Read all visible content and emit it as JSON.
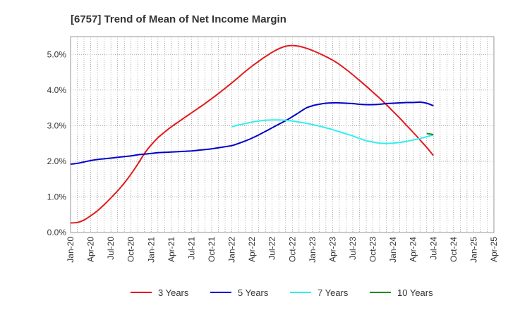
{
  "chart_data": {
    "type": "line",
    "title": "[6757]  Trend of Mean of Net Income Margin",
    "xlabel": "",
    "ylabel": "",
    "ylim": [
      0,
      5.5
    ],
    "y_ticks": [
      "0.0%",
      "1.0%",
      "2.0%",
      "3.0%",
      "4.0%",
      "5.0%"
    ],
    "x_ticks": [
      "Jan-20",
      "Apr-20",
      "Jul-20",
      "Oct-20",
      "Jan-21",
      "Apr-21",
      "Jul-21",
      "Oct-21",
      "Jan-22",
      "Apr-22",
      "Jul-22",
      "Oct-22",
      "Jan-23",
      "Apr-23",
      "Jul-23",
      "Oct-23",
      "Jan-24",
      "Apr-24",
      "Jul-24",
      "Oct-24",
      "Jan-25",
      "Apr-25"
    ],
    "grid": true,
    "legend_position": "bottom",
    "series": [
      {
        "name": "3 Years",
        "color": "#e31a1c",
        "points": [
          [
            "Jan-20",
            0.27
          ],
          [
            "Feb-20",
            0.28
          ],
          [
            "Mar-20",
            0.35
          ],
          [
            "Apr-20",
            0.47
          ],
          [
            "May-20",
            0.61
          ],
          [
            "Jun-20",
            0.78
          ],
          [
            "Jul-20",
            0.97
          ],
          [
            "Aug-20",
            1.17
          ],
          [
            "Sep-20",
            1.39
          ],
          [
            "Oct-20",
            1.64
          ],
          [
            "Nov-20",
            1.92
          ],
          [
            "Dec-20",
            2.22
          ],
          [
            "Jan-21",
            2.46
          ],
          [
            "Feb-21",
            2.66
          ],
          [
            "Mar-21",
            2.82
          ],
          [
            "Apr-21",
            2.97
          ],
          [
            "May-21",
            3.1
          ],
          [
            "Jun-21",
            3.23
          ],
          [
            "Jul-21",
            3.36
          ],
          [
            "Aug-21",
            3.49
          ],
          [
            "Sep-21",
            3.62
          ],
          [
            "Oct-21",
            3.76
          ],
          [
            "Nov-21",
            3.9
          ],
          [
            "Dec-21",
            4.05
          ],
          [
            "Jan-22",
            4.2
          ],
          [
            "Feb-22",
            4.36
          ],
          [
            "Mar-22",
            4.52
          ],
          [
            "Apr-22",
            4.67
          ],
          [
            "May-22",
            4.81
          ],
          [
            "Jun-22",
            4.94
          ],
          [
            "Jul-22",
            5.06
          ],
          [
            "Aug-22",
            5.16
          ],
          [
            "Sep-22",
            5.23
          ],
          [
            "Oct-22",
            5.25
          ],
          [
            "Nov-22",
            5.23
          ],
          [
            "Dec-22",
            5.18
          ],
          [
            "Jan-23",
            5.11
          ],
          [
            "Feb-23",
            5.03
          ],
          [
            "Mar-23",
            4.94
          ],
          [
            "Apr-23",
            4.84
          ],
          [
            "May-23",
            4.72
          ],
          [
            "Jun-23",
            4.58
          ],
          [
            "Jul-23",
            4.43
          ],
          [
            "Aug-23",
            4.27
          ],
          [
            "Sep-23",
            4.11
          ],
          [
            "Oct-23",
            3.94
          ],
          [
            "Nov-23",
            3.77
          ],
          [
            "Dec-23",
            3.59
          ],
          [
            "Jan-24",
            3.4
          ],
          [
            "Feb-24",
            3.21
          ],
          [
            "Mar-24",
            3.01
          ],
          [
            "Apr-24",
            2.81
          ],
          [
            "May-24",
            2.6
          ],
          [
            "Jun-24",
            2.39
          ],
          [
            "Jul-24",
            2.16
          ]
        ]
      },
      {
        "name": "5 Years",
        "color": "#0000cc",
        "points": [
          [
            "Jan-20",
            1.92
          ],
          [
            "Feb-20",
            1.94
          ],
          [
            "Mar-20",
            1.98
          ],
          [
            "Apr-20",
            2.02
          ],
          [
            "May-20",
            2.05
          ],
          [
            "Jun-20",
            2.07
          ],
          [
            "Jul-20",
            2.09
          ],
          [
            "Aug-20",
            2.11
          ],
          [
            "Sep-20",
            2.13
          ],
          [
            "Oct-20",
            2.15
          ],
          [
            "Nov-20",
            2.18
          ],
          [
            "Dec-20",
            2.2
          ],
          [
            "Jan-21",
            2.22
          ],
          [
            "Feb-21",
            2.24
          ],
          [
            "Mar-21",
            2.25
          ],
          [
            "Apr-21",
            2.26
          ],
          [
            "May-21",
            2.27
          ],
          [
            "Jun-21",
            2.28
          ],
          [
            "Jul-21",
            2.29
          ],
          [
            "Aug-21",
            2.31
          ],
          [
            "Sep-21",
            2.33
          ],
          [
            "Oct-21",
            2.35
          ],
          [
            "Nov-21",
            2.38
          ],
          [
            "Dec-21",
            2.41
          ],
          [
            "Jan-22",
            2.44
          ],
          [
            "Feb-22",
            2.5
          ],
          [
            "Mar-22",
            2.57
          ],
          [
            "Apr-22",
            2.65
          ],
          [
            "May-22",
            2.74
          ],
          [
            "Jun-22",
            2.84
          ],
          [
            "Jul-22",
            2.94
          ],
          [
            "Aug-22",
            3.04
          ],
          [
            "Sep-22",
            3.14
          ],
          [
            "Oct-22",
            3.25
          ],
          [
            "Nov-22",
            3.37
          ],
          [
            "Dec-22",
            3.49
          ],
          [
            "Jan-23",
            3.56
          ],
          [
            "Feb-23",
            3.6
          ],
          [
            "Mar-23",
            3.63
          ],
          [
            "Apr-23",
            3.64
          ],
          [
            "May-23",
            3.64
          ],
          [
            "Jun-23",
            3.63
          ],
          [
            "Jul-23",
            3.62
          ],
          [
            "Aug-23",
            3.6
          ],
          [
            "Sep-23",
            3.59
          ],
          [
            "Oct-23",
            3.59
          ],
          [
            "Nov-23",
            3.6
          ],
          [
            "Dec-23",
            3.62
          ],
          [
            "Jan-24",
            3.63
          ],
          [
            "Feb-24",
            3.64
          ],
          [
            "Mar-24",
            3.65
          ],
          [
            "Apr-24",
            3.65
          ],
          [
            "May-24",
            3.66
          ],
          [
            "Jun-24",
            3.63
          ],
          [
            "Jul-24",
            3.56
          ]
        ]
      },
      {
        "name": "7 Years",
        "color": "#33eeee",
        "points": [
          [
            "Jan-22",
            2.97
          ],
          [
            "Feb-22",
            3.02
          ],
          [
            "Mar-22",
            3.06
          ],
          [
            "Apr-22",
            3.1
          ],
          [
            "May-22",
            3.13
          ],
          [
            "Jun-22",
            3.15
          ],
          [
            "Jul-22",
            3.16
          ],
          [
            "Aug-22",
            3.16
          ],
          [
            "Sep-22",
            3.15
          ],
          [
            "Oct-22",
            3.13
          ],
          [
            "Nov-22",
            3.1
          ],
          [
            "Dec-22",
            3.07
          ],
          [
            "Jan-23",
            3.03
          ],
          [
            "Feb-23",
            2.99
          ],
          [
            "Mar-23",
            2.94
          ],
          [
            "Apr-23",
            2.89
          ],
          [
            "May-23",
            2.83
          ],
          [
            "Jun-23",
            2.77
          ],
          [
            "Jul-23",
            2.71
          ],
          [
            "Aug-23",
            2.64
          ],
          [
            "Sep-23",
            2.58
          ],
          [
            "Oct-23",
            2.54
          ],
          [
            "Nov-23",
            2.51
          ],
          [
            "Dec-23",
            2.5
          ],
          [
            "Jan-24",
            2.51
          ],
          [
            "Feb-24",
            2.53
          ],
          [
            "Mar-24",
            2.56
          ],
          [
            "Apr-24",
            2.6
          ],
          [
            "May-24",
            2.64
          ],
          [
            "Jun-24",
            2.69
          ],
          [
            "Jul-24",
            2.74
          ]
        ]
      },
      {
        "name": "10 Years",
        "color": "#228b22",
        "points": [
          [
            "Jun-24",
            2.78
          ],
          [
            "Jul-24",
            2.75
          ]
        ]
      }
    ]
  }
}
